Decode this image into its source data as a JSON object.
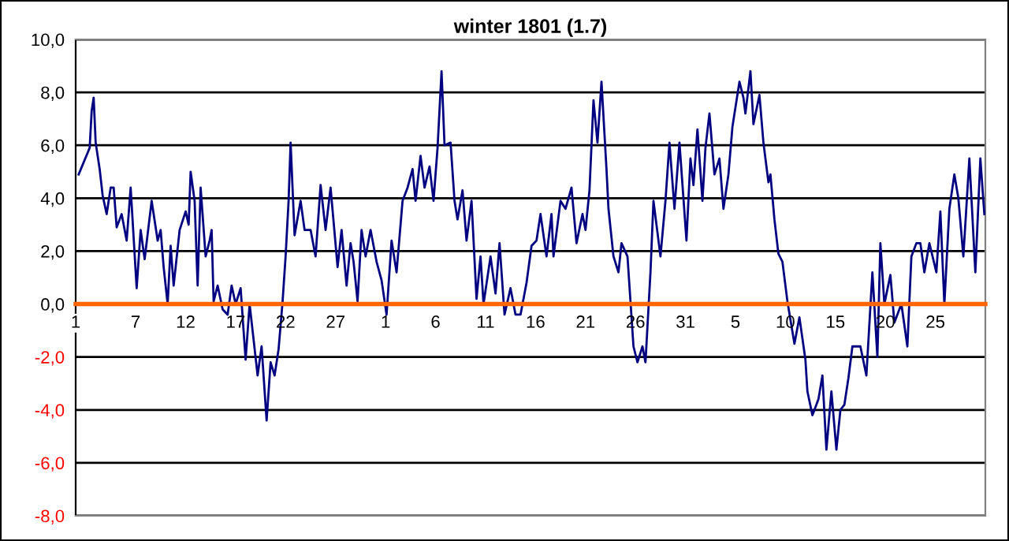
{
  "chart_data": {
    "type": "line",
    "title": "winter 1801 (1.7)",
    "x": [
      "1800-12-01T07:12",
      "1800-12-02T09:36",
      "1800-12-02T14:24",
      "1800-12-02T19:12",
      "1800-12-03T00:00",
      "1800-12-03T09:36",
      "1800-12-03T16:48",
      "1800-12-04T02:24",
      "1800-12-04T12:00",
      "1800-12-04T19:12",
      "1800-12-05T02:24",
      "1800-12-05T14:24",
      "1800-12-06T02:24",
      "1800-12-06T12:00",
      "1800-12-07T02:24",
      "1800-12-07T12:00",
      "1800-12-07T21:36",
      "1800-12-08T14:24",
      "1800-12-09T04:48",
      "1800-12-09T12:00",
      "1800-12-09T19:12",
      "1800-12-10T04:48",
      "1800-12-10T12:00",
      "1800-12-10T19:12",
      "1800-12-11T09:36",
      "1800-12-12T00:00",
      "1800-12-12T07:12",
      "1800-12-12T12:00",
      "1800-12-12T21:36",
      "1800-12-13T04:48",
      "1800-12-13T12:00",
      "1800-12-14T00:00",
      "1800-12-14T09:36",
      "1800-12-14T14:24",
      "1800-12-14T19:12",
      "1800-12-15T04:48",
      "1800-12-15T16:48",
      "1800-12-16T04:48",
      "1800-12-16T14:24",
      "1800-12-17T00:00",
      "1800-12-17T12:00",
      "1800-12-18T00:00",
      "1800-12-18T09:36",
      "1800-12-19T04:48",
      "1800-12-19T14:24",
      "1800-12-20T02:24",
      "1800-12-20T12:00",
      "1800-12-20T21:36",
      "1800-12-21T07:12",
      "1800-12-21T16:48",
      "1800-12-22T00:00",
      "1800-12-22T07:12",
      "1800-12-22T12:00",
      "1800-12-22T21:36",
      "1800-12-23T12:00",
      "1800-12-23T21:36",
      "1800-12-24T12:00",
      "1800-12-25T00:00",
      "1800-12-25T12:00",
      "1800-12-26T00:00",
      "1800-12-26T12:00",
      "1800-12-27T04:48",
      "1800-12-27T14:24",
      "1800-12-28T02:24",
      "1800-12-28T12:00",
      "1800-12-28T19:12",
      "1800-12-29T04:48",
      "1800-12-29T14:24",
      "1800-12-30T00:00",
      "1800-12-30T12:00",
      "1800-12-31T02:24",
      "1800-12-31T14:24",
      "1801-01-01T02:24",
      "1801-01-01T14:24",
      "1801-01-02T02:24",
      "1801-01-02T16:48",
      "1801-01-03T04:48",
      "1801-01-03T16:48",
      "1801-01-04T00:00",
      "1801-01-04T12:00",
      "1801-01-04T21:36",
      "1801-01-05T09:36",
      "1801-01-05T19:12",
      "1801-01-06T04:48",
      "1801-01-06T14:24",
      "1801-01-06T21:36",
      "1801-01-07T12:00",
      "1801-01-07T21:36",
      "1801-01-08T04:48",
      "1801-01-08T16:48",
      "1801-01-09T02:24",
      "1801-01-09T14:24",
      "1801-01-10T02:24",
      "1801-01-10T12:00",
      "1801-01-10T19:12",
      "1801-01-11T12:00",
      "1801-01-12T00:00",
      "1801-01-12T09:36",
      "1801-01-12T21:36",
      "1801-01-13T12:00",
      "1801-01-14T00:00",
      "1801-01-14T12:00",
      "1801-01-15T02:24",
      "1801-01-15T14:24",
      "1801-01-16T02:24",
      "1801-01-16T12:00",
      "1801-01-17T02:24",
      "1801-01-17T14:24",
      "1801-01-17T19:12",
      "1801-01-18T12:00",
      "1801-01-19T00:00",
      "1801-01-19T14:24",
      "1801-01-20T02:24",
      "1801-01-20T16:48",
      "1801-01-21T00:00",
      "1801-01-21T09:36",
      "1801-01-21T19:12",
      "1801-01-22T04:48",
      "1801-01-22T14:24",
      "1801-01-23T02:24",
      "1801-01-23T07:12",
      "1801-01-23T19:12",
      "1801-01-24T07:12",
      "1801-01-24T14:24",
      "1801-01-25T04:48",
      "1801-01-25T19:12",
      "1801-01-26T04:48",
      "1801-01-26T16:48",
      "1801-01-27T00:00",
      "1801-01-27T12:00",
      "1801-01-27T19:12",
      "1801-01-28T12:00",
      "1801-01-29T00:00",
      "1801-01-29T09:36",
      "1801-01-29T21:36",
      "1801-01-30T09:36",
      "1801-01-31T02:24",
      "1801-01-31T12:00",
      "1801-01-31T19:12",
      "1801-02-01T04:48",
      "1801-02-01T16:48",
      "1801-02-02T00:00",
      "1801-02-02T09:36",
      "1801-02-02T21:36",
      "1801-02-03T09:36",
      "1801-02-03T19:12",
      "1801-02-04T07:12",
      "1801-02-04T16:48",
      "1801-02-05T09:36",
      "1801-02-05T19:12",
      "1801-02-06T00:00",
      "1801-02-06T12:00",
      "1801-02-06T19:12",
      "1801-02-07T09:36",
      "1801-02-07T19:12",
      "1801-02-08T07:12",
      "1801-02-08T12:00",
      "1801-02-08T21:36",
      "1801-02-09T07:12",
      "1801-02-09T16:48",
      "1801-02-10T04:48",
      "1801-02-10T21:36",
      "1801-02-11T09:36",
      "1801-02-12T00:00",
      "1801-02-12T04:48",
      "1801-02-12T16:48",
      "1801-02-13T07:12",
      "1801-02-13T16:48",
      "1801-02-14T02:24",
      "1801-02-14T14:24",
      "1801-02-15T02:24",
      "1801-02-15T12:00",
      "1801-02-15T21:36",
      "1801-02-16T07:12",
      "1801-02-16T16:48",
      "1801-02-17T12:00",
      "1801-02-18T02:24",
      "1801-02-18T16:48",
      "1801-02-19T04:48",
      "1801-02-19T12:00",
      "1801-02-19T21:36",
      "1801-02-20T12:00",
      "1801-02-20T21:36",
      "1801-02-21T14:24",
      "1801-02-22T04:48",
      "1801-02-22T14:24",
      "1801-02-23T02:24",
      "1801-02-23T12:00",
      "1801-02-23T21:36",
      "1801-02-24T09:36",
      "1801-02-25T02:24",
      "1801-02-25T12:00",
      "1801-02-25T21:36",
      "1801-02-26T09:36",
      "1801-02-26T21:36",
      "1801-02-27T07:12",
      "1801-02-27T19:12",
      "1801-02-28T09:36",
      "1801-03-01T00:00",
      "1801-03-01T12:00",
      "1801-03-01T21:36"
    ],
    "series": [
      {
        "color": "#000080",
        "values": [
          4.9,
          5.9,
          7.3,
          7.8,
          6.1,
          5.1,
          4.1,
          3.4,
          4.4,
          4.4,
          2.9,
          3.4,
          2.4,
          4.4,
          0.6,
          2.8,
          1.7,
          3.9,
          2.4,
          2.8,
          1.4,
          0.0,
          2.2,
          0.7,
          2.8,
          3.5,
          3.0,
          5.0,
          3.9,
          0.7,
          4.4,
          1.8,
          2.4,
          2.8,
          0.1,
          0.7,
          -0.2,
          -0.4,
          0.7,
          0.0,
          0.6,
          -2.1,
          0.0,
          -2.7,
          -1.6,
          -4.4,
          -2.2,
          -2.7,
          -1.7,
          0.1,
          1.8,
          3.9,
          6.1,
          2.6,
          3.9,
          2.8,
          2.8,
          1.8,
          4.5,
          2.8,
          4.4,
          1.4,
          2.8,
          0.7,
          2.3,
          1.6,
          0.1,
          2.8,
          1.8,
          2.8,
          1.6,
          0.9,
          -0.4,
          2.4,
          1.2,
          3.9,
          4.4,
          5.1,
          3.9,
          5.6,
          4.4,
          5.2,
          3.9,
          5.9,
          8.8,
          6.0,
          6.1,
          3.9,
          3.2,
          4.3,
          2.4,
          3.9,
          0.2,
          1.8,
          0.0,
          1.8,
          0.4,
          2.3,
          -0.4,
          0.6,
          -0.4,
          -0.4,
          0.8,
          2.2,
          2.4,
          3.4,
          1.8,
          3.4,
          1.8,
          3.9,
          3.6,
          4.4,
          2.3,
          3.4,
          2.8,
          4.3,
          7.7,
          6.1,
          8.4,
          5.1,
          3.6,
          1.8,
          1.2,
          2.3,
          1.8,
          -1.6,
          -2.2,
          -1.6,
          -2.2,
          1.2,
          3.9,
          1.8,
          3.9,
          6.1,
          3.6,
          6.1,
          2.4,
          5.5,
          4.5,
          6.6,
          3.9,
          5.9,
          7.2,
          4.9,
          5.5,
          3.6,
          4.9,
          6.7,
          8.4,
          7.8,
          7.2,
          8.8,
          6.8,
          7.9,
          6.1,
          4.6,
          4.9,
          3.2,
          1.9,
          1.6,
          0.1,
          -1.5,
          -0.5,
          -2.1,
          -3.3,
          -4.2,
          -3.6,
          -2.7,
          -5.5,
          -3.3,
          -5.5,
          -4.0,
          -3.8,
          -2.8,
          -1.6,
          -1.6,
          -2.7,
          1.2,
          -2.0,
          2.3,
          0.0,
          1.1,
          -0.7,
          0.0,
          -1.6,
          1.8,
          2.3,
          2.3,
          1.2,
          2.3,
          1.2,
          3.5,
          0.0,
          3.6,
          4.9,
          4.0,
          1.8,
          5.5,
          1.2,
          5.5,
          3.4
        ]
      }
    ],
    "xlim": [
      "1800-12-01",
      "1801-03-02"
    ],
    "xticks": [
      {
        "value": "1800-12-01",
        "label": "1"
      },
      {
        "value": "1800-12-07",
        "label": "7"
      },
      {
        "value": "1800-12-12",
        "label": "12"
      },
      {
        "value": "1800-12-17",
        "label": "17"
      },
      {
        "value": "1800-12-22",
        "label": "22"
      },
      {
        "value": "1800-12-27",
        "label": "27"
      },
      {
        "value": "1801-01-01",
        "label": "1"
      },
      {
        "value": "1801-01-06",
        "label": "6"
      },
      {
        "value": "1801-01-11",
        "label": "11"
      },
      {
        "value": "1801-01-16",
        "label": "16"
      },
      {
        "value": "1801-01-21",
        "label": "21"
      },
      {
        "value": "1801-01-26",
        "label": "26"
      },
      {
        "value": "1801-01-31",
        "label": "31"
      },
      {
        "value": "1801-02-05",
        "label": "5"
      },
      {
        "value": "1801-02-10",
        "label": "10"
      },
      {
        "value": "1801-02-15",
        "label": "15"
      },
      {
        "value": "1801-02-20",
        "label": "20"
      },
      {
        "value": "1801-02-25",
        "label": "25"
      }
    ],
    "ylim": [
      -8,
      10
    ],
    "yticks": [
      {
        "value": -8,
        "label": "-8,0"
      },
      {
        "value": -6,
        "label": "-6,0"
      },
      {
        "value": -4,
        "label": "-4,0"
      },
      {
        "value": -2,
        "label": "-2,0"
      },
      {
        "value": 0,
        "label": "0,0"
      },
      {
        "value": 2,
        "label": "2,0"
      },
      {
        "value": 4,
        "label": "4,0"
      },
      {
        "value": 6,
        "label": "6,0"
      },
      {
        "value": 8,
        "label": "8,0"
      },
      {
        "value": 10,
        "label": "10,0"
      }
    ],
    "grid": "y",
    "marker": "none",
    "line_style": "solid"
  }
}
